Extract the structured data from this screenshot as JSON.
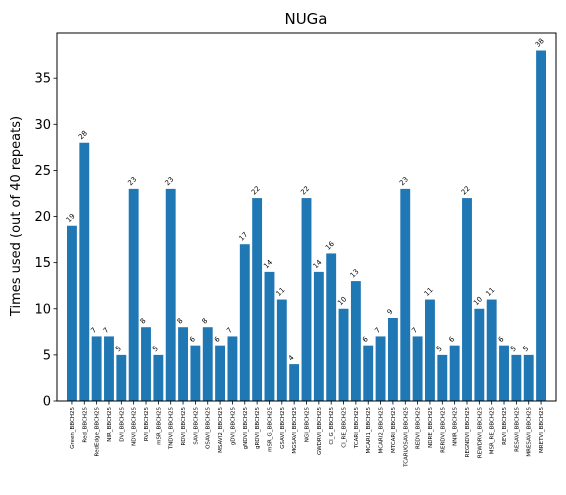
{
  "chart_data": {
    "type": "bar",
    "title": "NUGa",
    "xlabel": "",
    "ylabel": "Times used (out of 40 repeats)",
    "ylim": [
      0,
      39.9
    ],
    "yticks": [
      0,
      5,
      10,
      15,
      20,
      25,
      30,
      35
    ],
    "bar_color": "#1f77b4",
    "grid": false,
    "categories": [
      "Green_BBCH25",
      "Red_BBCH25",
      "RedEdge_BBCH25",
      "NIR_BBCH25",
      "DVI_BBCH25",
      "NDVI_BBCH25",
      "RVI_BBCH25",
      "mSR_BBCH25",
      "TNDVI_BBCH25",
      "RDVI_BBCH25",
      "SAVI_BBCH25",
      "OSAVI_BBCH25",
      "MSAVI2_BBCH25",
      "gDVI_BBCH25",
      "gNDVI_BBCH25",
      "gRDVI_BBCH25",
      "mSR_G_BBCH25",
      "GSAVI_BBCH25",
      "MGSAVI_BBCH25",
      "NGI_BBCH25",
      "GWDRVI_BBCH25",
      "CI_G_BBCH25",
      "CI_RE_BBCH25",
      "TCARI_BBCH25",
      "MCARI1_BBCH25",
      "MCARI2_BBCH25",
      "MTCARI_BBCH25",
      "TCARI/OSAVI_BBCH25",
      "REDVI_BBCH25",
      "NDRE_BBCH25",
      "RERDVI_BBCH25",
      "NNIR_BBCH25",
      "REGNDVI_BBCH25",
      "REWDRVI_BBCH25",
      "MSR_RE_BBCH25",
      "REVI_BBCH25",
      "RESAVI_BBCH25",
      "MRESAVI_BBCH25",
      "MRETVI_BBCH25"
    ],
    "values": [
      19,
      28,
      7,
      7,
      5,
      23,
      8,
      5,
      23,
      8,
      6,
      8,
      6,
      7,
      17,
      22,
      14,
      11,
      4,
      22,
      14,
      16,
      10,
      13,
      6,
      7,
      9,
      23,
      7,
      11,
      5,
      6,
      22,
      10,
      11,
      6,
      5,
      5,
      38
    ],
    "data_labels": [
      "19",
      "28",
      "7",
      "7",
      "5",
      "23",
      "8",
      "5",
      "23",
      "8",
      "6",
      "8",
      "6",
      "7",
      "17",
      "22",
      "14",
      "11",
      "4",
      "22",
      "14",
      "16",
      "10",
      "13",
      "6",
      "7",
      "9",
      "23",
      "7",
      "11",
      "5",
      "6",
      "22",
      "10",
      "11",
      "6",
      "5",
      "5",
      "38"
    ]
  }
}
